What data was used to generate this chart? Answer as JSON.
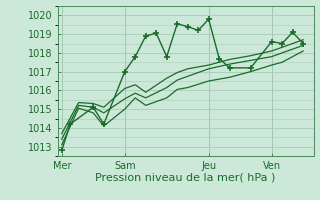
{
  "background_color": "#cce8d8",
  "grid_color": "#aaccb8",
  "line_color": "#1a6b2a",
  "marker_color": "#1a6b2a",
  "xlabel": "Pression niveau de la mer( hPa )",
  "xlabel_fontsize": 8,
  "ylim": [
    1012.5,
    1020.5
  ],
  "yticks": [
    1013,
    1014,
    1015,
    1016,
    1017,
    1018,
    1019,
    1020
  ],
  "xtick_labels": [
    "Mer",
    "Sam",
    "Jeu",
    "Ven"
  ],
  "xtick_positions": [
    0,
    3,
    7,
    10
  ],
  "xlim": [
    -0.2,
    12.0
  ],
  "series1_x": [
    0,
    0.4,
    1.5,
    2.0,
    3.0,
    3.5,
    4.0,
    4.5,
    5.0,
    5.5,
    6.0,
    6.5,
    7.0,
    7.5,
    8.0,
    9.0,
    10.0,
    10.5,
    11.0,
    11.5
  ],
  "series1_y": [
    1012.8,
    1014.2,
    1015.1,
    1014.2,
    1017.0,
    1017.8,
    1018.9,
    1019.05,
    1017.8,
    1019.55,
    1019.4,
    1019.2,
    1019.8,
    1017.7,
    1017.2,
    1017.2,
    1018.6,
    1018.5,
    1019.1,
    1018.5
  ],
  "series2_x": [
    0,
    0.8,
    1.5,
    2.0,
    3.0,
    3.5,
    4.0,
    5.0,
    5.5,
    6.0,
    7.0,
    8.0,
    9.0,
    10.0,
    10.5,
    11.0,
    11.5
  ],
  "series2_y": [
    1013.1,
    1015.05,
    1014.8,
    1014.1,
    1015.0,
    1015.6,
    1015.2,
    1015.6,
    1016.05,
    1016.15,
    1016.5,
    1016.7,
    1017.0,
    1017.35,
    1017.5,
    1017.8,
    1018.1
  ],
  "series3_x": [
    0,
    0.8,
    1.5,
    2.0,
    3.0,
    3.5,
    4.0,
    5.0,
    5.5,
    6.0,
    7.0,
    8.0,
    9.0,
    10.0,
    10.5,
    11.0,
    11.5
  ],
  "series3_y": [
    1013.4,
    1015.2,
    1015.1,
    1014.8,
    1015.55,
    1015.85,
    1015.6,
    1016.15,
    1016.55,
    1016.75,
    1017.15,
    1017.4,
    1017.6,
    1017.8,
    1018.0,
    1018.2,
    1018.4
  ],
  "series4_x": [
    0,
    0.8,
    1.5,
    2.0,
    3.0,
    3.5,
    4.0,
    5.0,
    5.5,
    6.0,
    7.0,
    8.0,
    9.0,
    10.0,
    10.5,
    11.0,
    11.5
  ],
  "series4_y": [
    1013.7,
    1015.35,
    1015.3,
    1015.1,
    1016.1,
    1016.3,
    1015.9,
    1016.65,
    1016.95,
    1017.15,
    1017.35,
    1017.65,
    1017.85,
    1018.1,
    1018.3,
    1018.5,
    1018.7
  ]
}
